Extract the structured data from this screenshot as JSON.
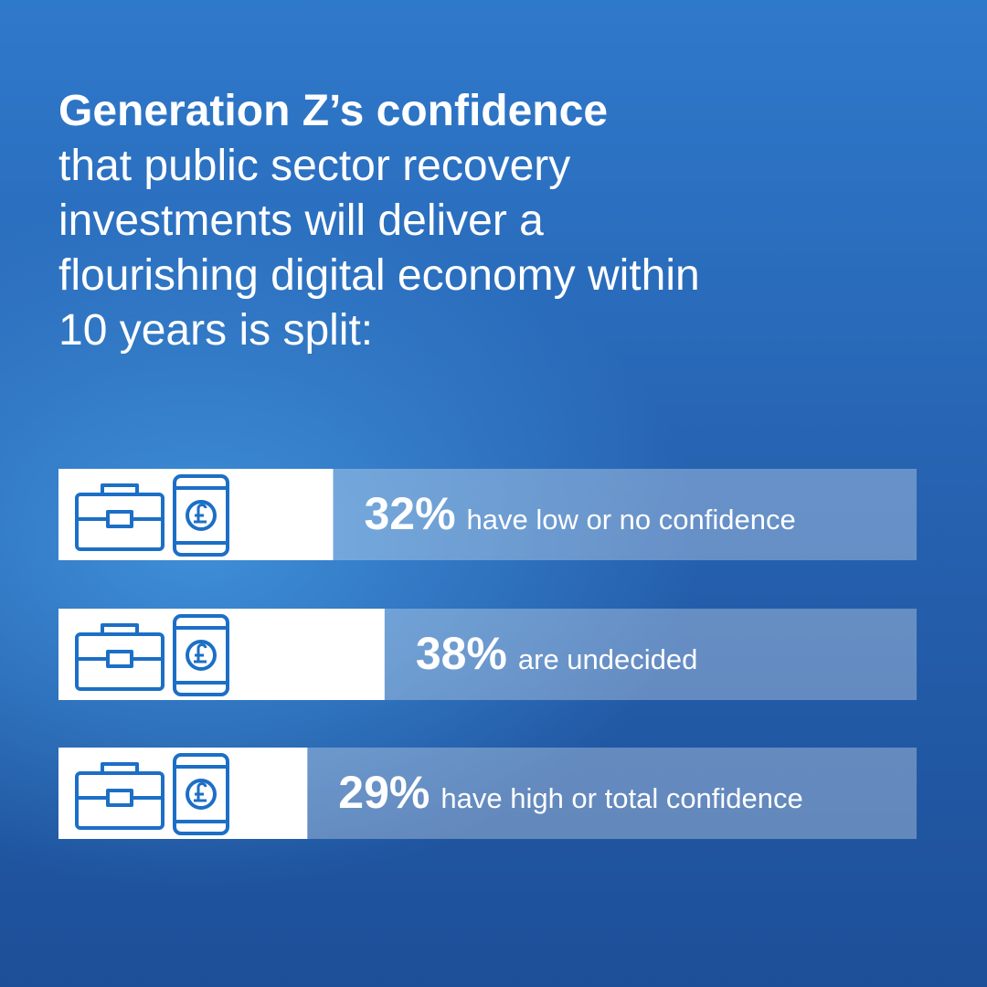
{
  "chart_data": {
    "type": "bar",
    "orientation": "horizontal",
    "title": "Generation Z’s confidence",
    "subtitle": "that public sector recovery investments will deliver a flourishing digital economy within 10 years is split:",
    "categories": [
      "have low or no confidence",
      "are undecided",
      "have high or total confidence"
    ],
    "values": [
      32,
      38,
      29
    ],
    "value_labels": [
      "32%",
      "38%",
      "29%"
    ],
    "color": "#ffffff",
    "xlim": [
      0,
      100
    ]
  }
}
